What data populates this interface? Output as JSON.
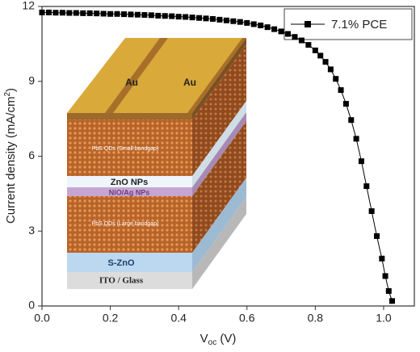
{
  "chart_data": {
    "type": "line",
    "x_label": [
      "V",
      "oc",
      " (V)"
    ],
    "y_label": [
      "Current density (mA/cm",
      "2",
      ")"
    ],
    "x": [
      0,
      0.02,
      0.04,
      0.06,
      0.08,
      0.1,
      0.12,
      0.14,
      0.16,
      0.18,
      0.2,
      0.22,
      0.24,
      0.26,
      0.28,
      0.3,
      0.32,
      0.34,
      0.36,
      0.38,
      0.4,
      0.42,
      0.44,
      0.46,
      0.48,
      0.5,
      0.52,
      0.54,
      0.56,
      0.58,
      0.6,
      0.62,
      0.64,
      0.66,
      0.68,
      0.7,
      0.72,
      0.74,
      0.76,
      0.78,
      0.8,
      0.815,
      0.83,
      0.845,
      0.86,
      0.875,
      0.89,
      0.905,
      0.92,
      0.935,
      0.95,
      0.965,
      0.98,
      0.995,
      1.005,
      1.015,
      1.025
    ],
    "series": [
      {
        "name": "7.1% PCE",
        "color": "#000000",
        "values": [
          11.76,
          11.76,
          11.75,
          11.75,
          11.74,
          11.74,
          11.73,
          11.73,
          11.72,
          11.71,
          11.7,
          11.7,
          11.69,
          11.68,
          11.67,
          11.66,
          11.65,
          11.63,
          11.62,
          11.61,
          11.59,
          11.58,
          11.56,
          11.54,
          11.52,
          11.5,
          11.47,
          11.44,
          11.41,
          11.38,
          11.34,
          11.29,
          11.24,
          11.17,
          11.09,
          11.0,
          10.9,
          10.78,
          10.64,
          10.46,
          10.24,
          10.03,
          9.78,
          9.48,
          9.1,
          8.65,
          8.1,
          7.45,
          6.7,
          5.8,
          4.8,
          3.8,
          2.8,
          1.9,
          1.2,
          0.6,
          0.2
        ]
      }
    ],
    "xlim": [
      0,
      1.09
    ],
    "xticks": [
      {
        "value": 0,
        "label": "0.0"
      },
      0.2,
      0.4,
      0.6,
      0.8,
      {
        "value": 1,
        "label": "1.0"
      }
    ],
    "ylim": [
      0,
      12
    ],
    "yticks": [
      0,
      3,
      6,
      9,
      12
    ],
    "legend": "upper right"
  },
  "inset": {
    "labels": {
      "au_left": "Au",
      "au_right": "Au",
      "pbs_small": "PbS QDs (Small bandgap)",
      "zno": "ZnO NPs",
      "nio": "NiO/Ag NPs",
      "pbs_large": "PbS QDs (Large bandgap)",
      "szno": "S-ZnO",
      "ito": "ITO / Glass"
    }
  }
}
